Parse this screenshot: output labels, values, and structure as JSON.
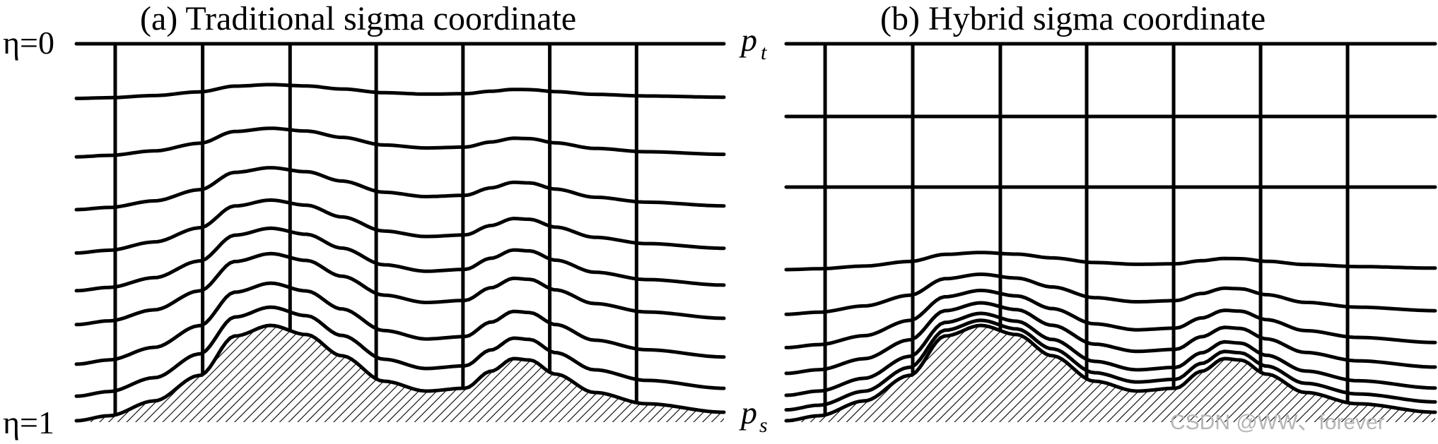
{
  "panels": [
    {
      "id": "a",
      "title": "(a)  Traditional sigma coordinate",
      "scheme": "terrain-following"
    },
    {
      "id": "b",
      "title": "(b)  Hybrid sigma coordinate",
      "scheme": "hybrid"
    }
  ],
  "labels": {
    "eta_top": "η=0",
    "eta_bottom": "η=1",
    "p_top": "p",
    "p_top_sub": "t",
    "p_surface": "p",
    "p_surface_sub": "s"
  },
  "watermark": "CSDN @WW、forever",
  "colors": {
    "line": "#000000",
    "hatch": "#000000",
    "watermark": "#b5b5b5"
  }
}
